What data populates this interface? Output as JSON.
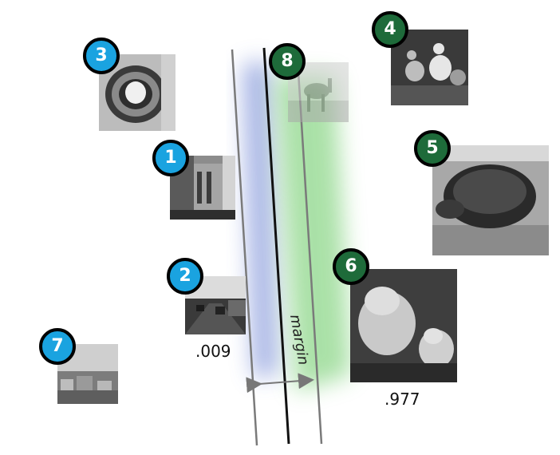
{
  "labels": {
    "margin": "margin",
    "score_left": ".009",
    "score_right": ".977"
  },
  "badges": {
    "b1": "1",
    "b2": "2",
    "b3": "3",
    "b4": "4",
    "b5": "5",
    "b6": "6",
    "b7": "7",
    "b8": "8"
  },
  "colors": {
    "negative_badge": "#1aa3e0",
    "positive_badge": "#1e6b3a",
    "negative_glow": "#7f93d8",
    "positive_glow": "#7fd07a",
    "boundary_line": "#111111",
    "margin_line": "#777777"
  },
  "images": [
    {
      "id": 1,
      "class": "negative",
      "subject": "street-buildings"
    },
    {
      "id": 2,
      "class": "negative",
      "subject": "road-traffic"
    },
    {
      "id": 3,
      "class": "negative",
      "subject": "kiwi-fruit"
    },
    {
      "id": 4,
      "class": "positive",
      "subject": "ducks"
    },
    {
      "id": 5,
      "class": "positive",
      "subject": "tortoise"
    },
    {
      "id": 6,
      "class": "positive",
      "subject": "groundhogs"
    },
    {
      "id": 7,
      "class": "negative",
      "subject": "town-landscape"
    },
    {
      "id": 8,
      "class": "positive",
      "subject": "camel"
    }
  ]
}
